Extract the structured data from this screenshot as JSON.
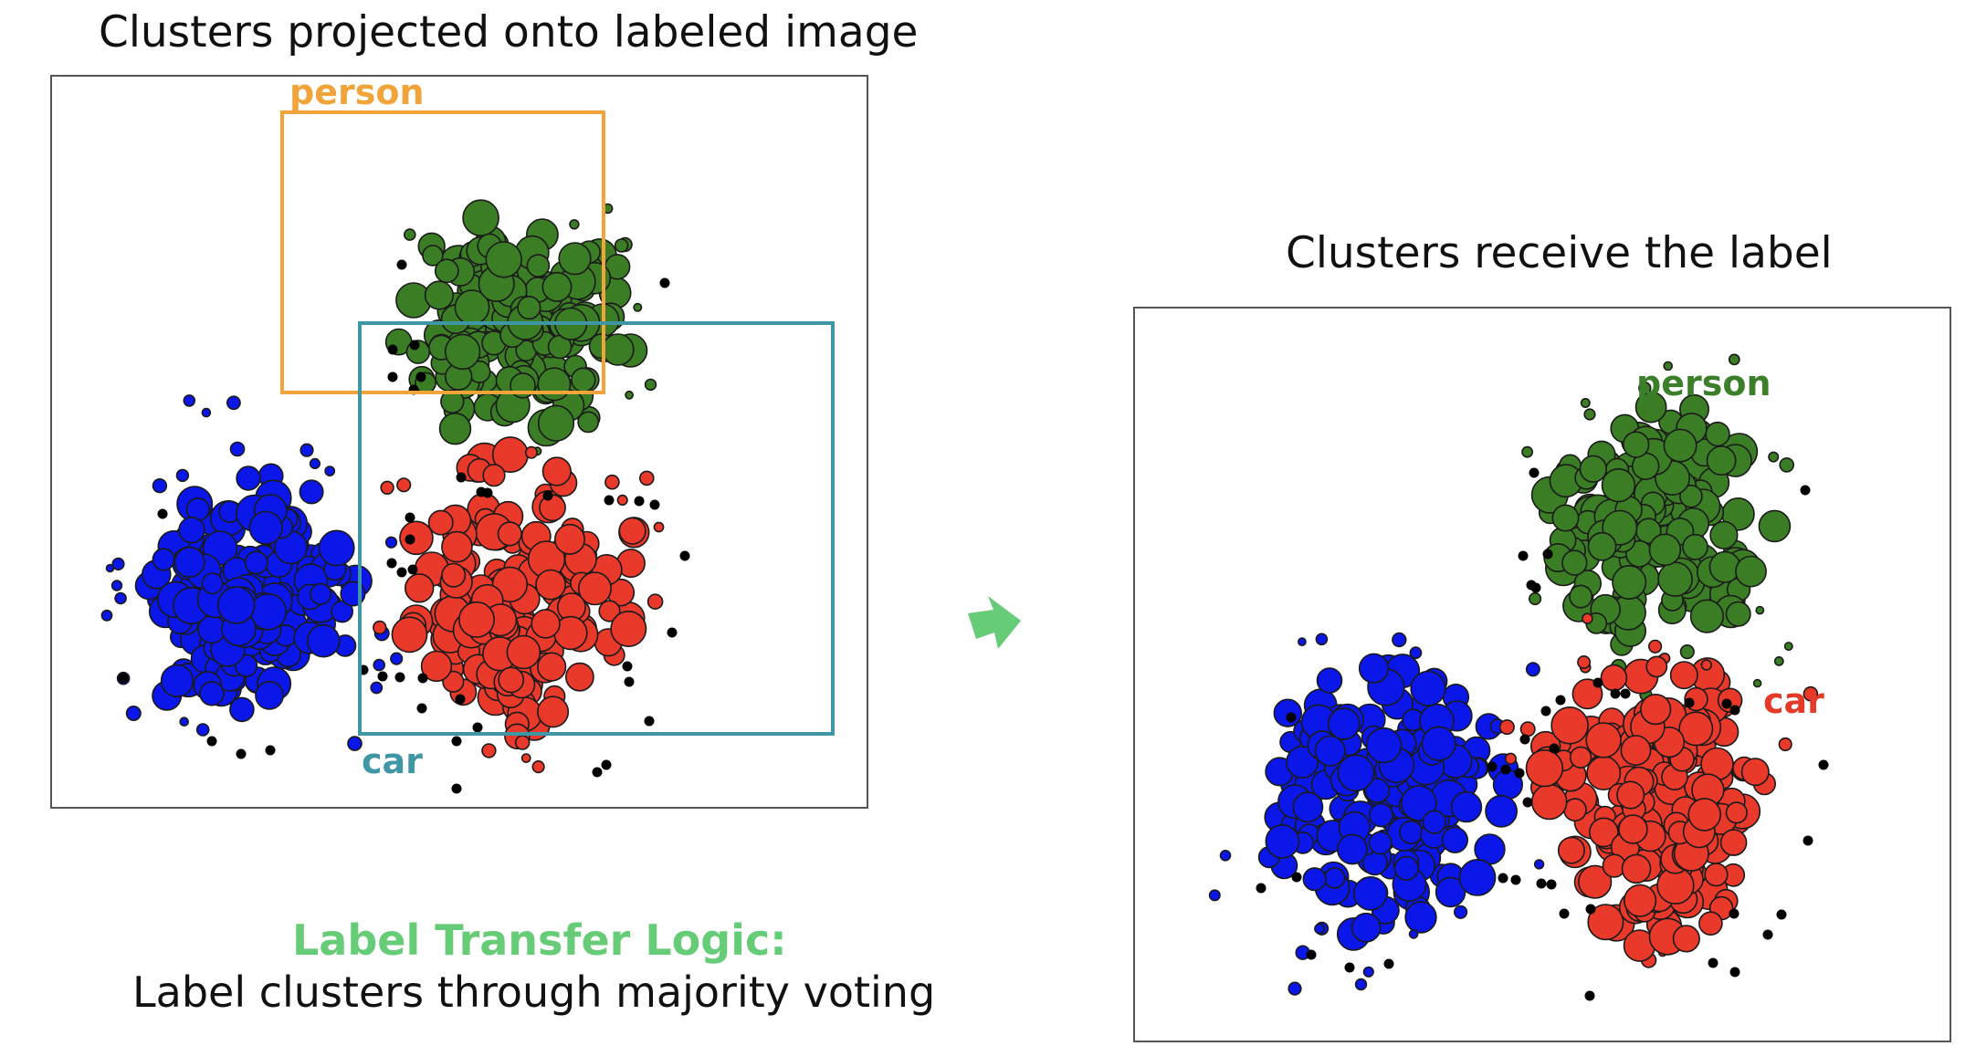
{
  "left_figure": {
    "title": "Clusters projected onto labeled image",
    "box_labels": {
      "person": "person",
      "car": "car"
    }
  },
  "right_figure": {
    "title": "Clusters receive the label",
    "cluster_labels": {
      "person": "person",
      "car": "car"
    }
  },
  "logic": {
    "title": "Label Transfer Logic:",
    "text": "Label clusters through majority voting"
  },
  "colors": {
    "person_box": "#f0a43a",
    "car_box": "#3f97a6",
    "person_label_right": "#3b7f2a",
    "car_label_right": "#e43a2a",
    "green_cluster": "#3b7d24",
    "red_cluster": "#e8392a",
    "blue_cluster": "#0b17e8",
    "noise": "#000000",
    "arrow": "#66cc77",
    "logic_title": "#66cc77"
  }
}
